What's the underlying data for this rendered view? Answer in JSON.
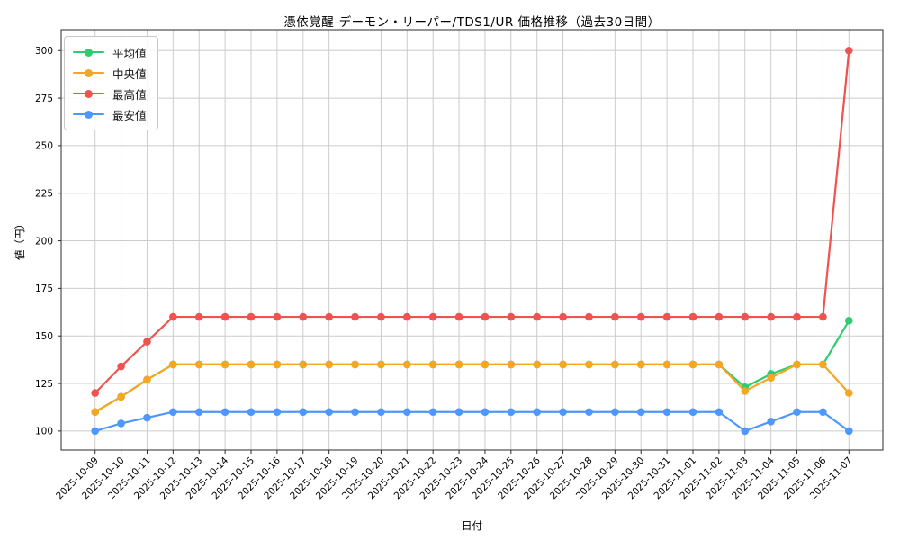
{
  "chart_data": {
    "type": "line",
    "title": "憑依覚醒-デーモン・リーパー/TDS1/UR 価格推移（過去30日間）",
    "xlabel": "日付",
    "ylabel": "値（円）",
    "x": [
      "2025-10-09",
      "2025-10-10",
      "2025-10-11",
      "2025-10-12",
      "2025-10-13",
      "2025-10-14",
      "2025-10-15",
      "2025-10-16",
      "2025-10-17",
      "2025-10-18",
      "2025-10-19",
      "2025-10-20",
      "2025-10-21",
      "2025-10-22",
      "2025-10-23",
      "2025-10-24",
      "2025-10-25",
      "2025-10-26",
      "2025-10-27",
      "2025-10-28",
      "2025-10-29",
      "2025-10-30",
      "2025-10-31",
      "2025-11-01",
      "2025-11-02",
      "2025-11-03",
      "2025-11-04",
      "2025-11-05",
      "2025-11-06",
      "2025-11-07"
    ],
    "series": [
      {
        "name": "平均値",
        "color": "#2ecc71",
        "values": [
          110,
          118,
          127,
          135,
          135,
          135,
          135,
          135,
          135,
          135,
          135,
          135,
          135,
          135,
          135,
          135,
          135,
          135,
          135,
          135,
          135,
          135,
          135,
          135,
          135,
          123,
          130,
          135,
          135,
          158
        ]
      },
      {
        "name": "中央値",
        "color": "#f5a623",
        "values": [
          110,
          118,
          127,
          135,
          135,
          135,
          135,
          135,
          135,
          135,
          135,
          135,
          135,
          135,
          135,
          135,
          135,
          135,
          135,
          135,
          135,
          135,
          135,
          135,
          135,
          121,
          128,
          135,
          135,
          120
        ]
      },
      {
        "name": "最高値",
        "color": "#ef5350",
        "values": [
          120,
          134,
          147,
          160,
          160,
          160,
          160,
          160,
          160,
          160,
          160,
          160,
          160,
          160,
          160,
          160,
          160,
          160,
          160,
          160,
          160,
          160,
          160,
          160,
          160,
          160,
          160,
          160,
          160,
          300
        ]
      },
      {
        "name": "最安値",
        "color": "#4d97ff",
        "values": [
          100,
          104,
          107,
          110,
          110,
          110,
          110,
          110,
          110,
          110,
          110,
          110,
          110,
          110,
          110,
          110,
          110,
          110,
          110,
          110,
          110,
          110,
          110,
          110,
          110,
          100,
          105,
          110,
          110,
          100
        ]
      }
    ],
    "ylim": [
      90,
      311
    ],
    "yticks": [
      100,
      125,
      150,
      175,
      200,
      225,
      250,
      275,
      300
    ],
    "grid": true,
    "grid_color": "#cccccc",
    "axis_color": "#2b2b2b",
    "legend_position": "upper left"
  }
}
